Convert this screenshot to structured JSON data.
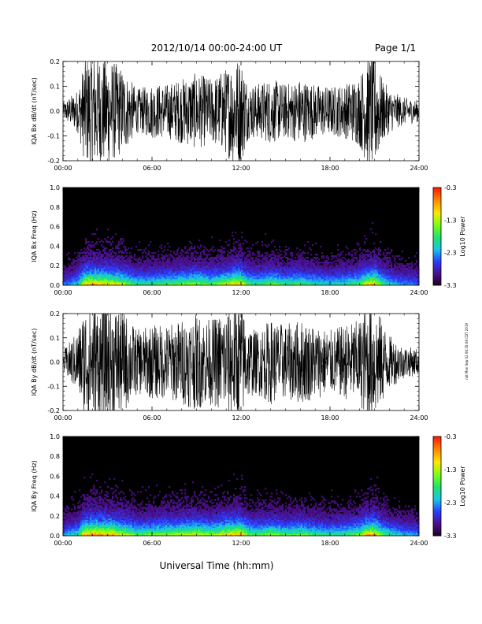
{
  "header": {
    "title": "2012/10/14  00:00-24:00 UT",
    "page": "Page 1/1"
  },
  "footer": {
    "xlabel": "Universal Time (hh:mm)",
    "side_note": "ndt Mon Sep 02 06:35:08 CDT 2019"
  },
  "colors": {
    "waveform": "#000000",
    "spectrogram_bg": "#000000",
    "colormap": [
      "#1a001f",
      "#4b0f8a",
      "#2a3cff",
      "#18c6e8",
      "#21e36c",
      "#7cff12",
      "#ffe600",
      "#ff8a00",
      "#ff1a00"
    ]
  },
  "chart_data": [
    {
      "type": "line",
      "ylabel": "IQA Bx dB/dt (nT/sec)",
      "xticks": [
        "00:00",
        "06:00",
        "12:00",
        "18:00",
        "24:00"
      ],
      "yticks": [
        "-0.2",
        "-0.1",
        "0.0",
        "0.1",
        "0.2"
      ],
      "xlim": [
        0,
        24
      ],
      "ylim": [
        -0.2,
        0.2
      ],
      "envelope_hours": [
        0,
        1,
        1.5,
        2,
        3,
        4,
        5,
        6,
        7,
        8,
        9,
        10,
        11,
        11.5,
        12,
        12.5,
        13,
        14,
        15,
        16,
        17,
        18,
        19,
        20,
        20.5,
        21,
        21.5,
        22,
        23,
        24
      ],
      "envelope_amplitude": [
        0.03,
        0.08,
        0.2,
        0.22,
        0.2,
        0.16,
        0.08,
        0.1,
        0.1,
        0.12,
        0.14,
        0.12,
        0.16,
        0.2,
        0.2,
        0.1,
        0.1,
        0.12,
        0.1,
        0.12,
        0.1,
        0.09,
        0.1,
        0.13,
        0.2,
        0.22,
        0.12,
        0.08,
        0.05,
        0.04
      ]
    },
    {
      "type": "heatmap",
      "ylabel": "IQA Bx Freq (Hz)",
      "xticks": [
        "00:00",
        "06:00",
        "12:00",
        "18:00",
        "24:00"
      ],
      "yticks": [
        "0.0",
        "0.2",
        "0.4",
        "0.6",
        "0.8",
        "1.0"
      ],
      "xlim": [
        0,
        24
      ],
      "ylim": [
        0,
        1
      ],
      "colorbar": {
        "label": "Log10 Power",
        "ticks": [
          "-0.3",
          "-1.3",
          "-2.3",
          "-3.3"
        ],
        "range": [
          -3.3,
          -0.3
        ]
      },
      "activity_hours": [
        0,
        1,
        1.5,
        2,
        3,
        4,
        5,
        6,
        7,
        8,
        9,
        10,
        11,
        11.5,
        12,
        12.5,
        13,
        14,
        15,
        16,
        17,
        18,
        19,
        20,
        20.5,
        21,
        21.5,
        22,
        23,
        24
      ],
      "activity_level": [
        0.3,
        0.45,
        0.9,
        0.95,
        0.85,
        0.75,
        0.5,
        0.55,
        0.6,
        0.65,
        0.7,
        0.6,
        0.75,
        0.85,
        0.9,
        0.6,
        0.55,
        0.65,
        0.55,
        0.6,
        0.5,
        0.45,
        0.5,
        0.6,
        0.85,
        0.9,
        0.6,
        0.45,
        0.35,
        0.3
      ]
    },
    {
      "type": "line",
      "ylabel": "IQA By dB/dt (nT/sec)",
      "xticks": [
        "00:00",
        "06:00",
        "12:00",
        "18:00",
        "24:00"
      ],
      "yticks": [
        "-0.2",
        "-0.1",
        "0.0",
        "0.1",
        "0.2"
      ],
      "xlim": [
        0,
        24
      ],
      "ylim": [
        -0.2,
        0.2
      ],
      "envelope_hours": [
        0,
        1,
        1.5,
        2,
        3,
        4,
        5,
        6,
        7,
        8,
        9,
        10,
        11,
        11.5,
        12,
        12.5,
        13,
        14,
        15,
        16,
        17,
        18,
        19,
        20,
        20.5,
        21,
        21.5,
        22,
        23,
        24
      ],
      "envelope_amplitude": [
        0.04,
        0.12,
        0.22,
        0.22,
        0.22,
        0.2,
        0.12,
        0.14,
        0.14,
        0.16,
        0.18,
        0.16,
        0.2,
        0.22,
        0.22,
        0.14,
        0.12,
        0.16,
        0.14,
        0.16,
        0.14,
        0.12,
        0.14,
        0.16,
        0.22,
        0.22,
        0.16,
        0.1,
        0.06,
        0.05
      ]
    },
    {
      "type": "heatmap",
      "ylabel": "IQA By Freq (Hz)",
      "xticks": [
        "00:00",
        "06:00",
        "12:00",
        "18:00",
        "24:00"
      ],
      "yticks": [
        "0.0",
        "0.2",
        "0.4",
        "0.6",
        "0.8",
        "1.0"
      ],
      "xlim": [
        0,
        24
      ],
      "ylim": [
        0,
        1
      ],
      "colorbar": {
        "label": "Log10 Power",
        "ticks": [
          "-0.3",
          "-1.3",
          "-2.3",
          "-3.3"
        ],
        "range": [
          -3.3,
          -0.3
        ]
      },
      "activity_hours": [
        0,
        1,
        1.5,
        2,
        3,
        4,
        5,
        6,
        7,
        8,
        9,
        10,
        11,
        11.5,
        12,
        12.5,
        13,
        14,
        15,
        16,
        17,
        18,
        19,
        20,
        20.5,
        21,
        21.5,
        22,
        23,
        24
      ],
      "activity_level": [
        0.35,
        0.5,
        0.95,
        1.0,
        0.95,
        0.8,
        0.6,
        0.65,
        0.7,
        0.75,
        0.8,
        0.7,
        0.85,
        0.9,
        0.95,
        0.65,
        0.6,
        0.7,
        0.6,
        0.65,
        0.55,
        0.5,
        0.55,
        0.65,
        0.9,
        0.95,
        0.65,
        0.5,
        0.4,
        0.35
      ]
    }
  ]
}
